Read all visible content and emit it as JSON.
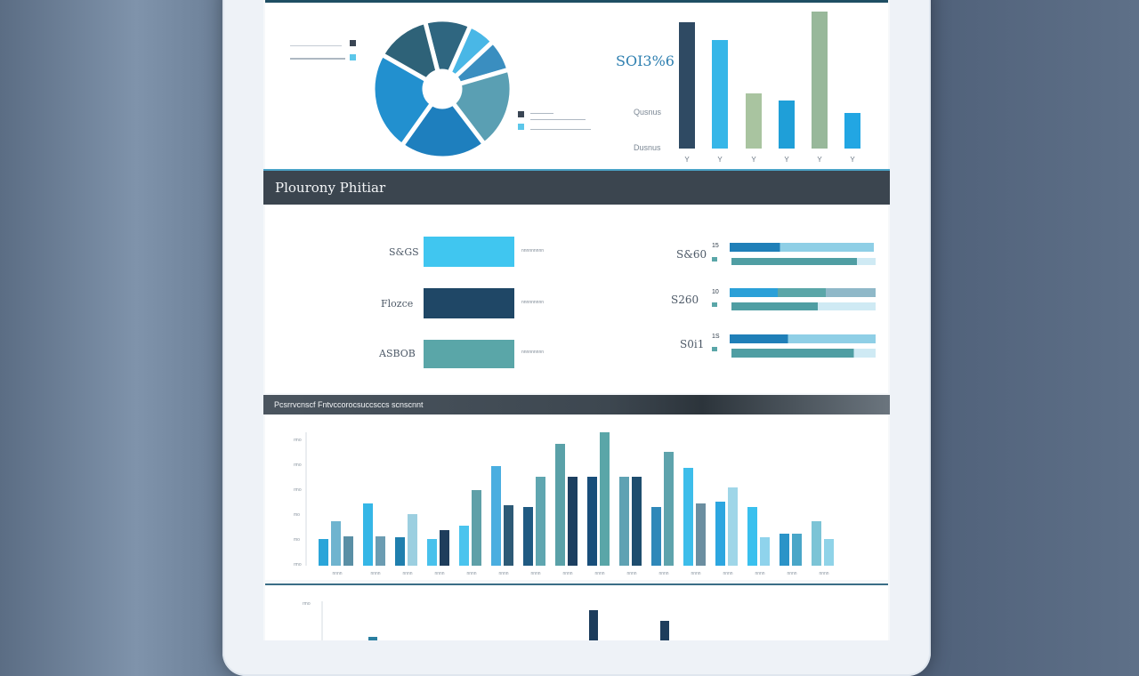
{
  "top_panel": {
    "big_value": "SOI3%6",
    "pie_slices": [
      {
        "value": 10,
        "color": "#2f6680"
      },
      {
        "value": 6,
        "color": "#49b7e6"
      },
      {
        "value": 7,
        "color": "#3a8ec0"
      },
      {
        "value": 18,
        "color": "#5a9fb3"
      },
      {
        "value": 19,
        "color": "#1e7fbe"
      },
      {
        "value": 22,
        "color": "#2290cf"
      },
      {
        "value": 12,
        "color": "#2e6278"
      }
    ],
    "bar_labels": [
      "Qusnus",
      "Dusnus"
    ],
    "vbars": [
      {
        "value": 142,
        "color": "#2f4a63"
      },
      {
        "value": 122,
        "color": "#36b6e8"
      },
      {
        "value": 62,
        "color": "#a9c4a0"
      },
      {
        "value": 54,
        "color": "#1f9fd8"
      },
      {
        "value": 154,
        "color": "#98b89a"
      },
      {
        "value": 40,
        "color": "#22a6e3"
      }
    ],
    "xticks": [
      "Y",
      "Y",
      "Y",
      "Y",
      "Y",
      "Y"
    ]
  },
  "section1": {
    "title": "Plourony Phitiar",
    "left_rows": [
      {
        "label": "S&GS",
        "color": "#40c6f0",
        "note": "nnnnnnnnn"
      },
      {
        "label": "Flozce",
        "color": "#1f4766",
        "note": "nnnnnnnnn"
      },
      {
        "label": "ASBOB",
        "color": "#5aa6a8",
        "note": "nnnnnnnnn"
      }
    ],
    "right_rows": [
      {
        "label": "S&60",
        "tag": "15",
        "dark": 0.35,
        "light": 0.65,
        "under": 0.87
      },
      {
        "label": "S260",
        "tag": "10",
        "dark": 0.35,
        "light": 0.65,
        "under": 0.6
      },
      {
        "label": "S0i1",
        "tag": "1S",
        "dark": 0.4,
        "light": 0.6,
        "under": 0.85
      }
    ]
  },
  "section2": {
    "title": "Pcsrrvcnscf Fntvccorocsuccsccs scnscnnt",
    "yticks": [
      "rmo",
      "rmo",
      "rmo",
      "mo",
      "mo",
      "rmo"
    ],
    "groups": [
      {
        "bars": [
          {
            "value": 30,
            "color": "#2aa5d9"
          },
          {
            "value": 50,
            "color": "#6fb4cf"
          },
          {
            "value": 33,
            "color": "#5a8fa5"
          }
        ],
        "label": "nnnn"
      },
      {
        "bars": [
          {
            "value": 70,
            "color": "#35b6e6"
          },
          {
            "value": 33,
            "color": "#6b9cb2"
          }
        ],
        "label": "nnnn"
      },
      {
        "bars": [
          {
            "value": 32,
            "color": "#1f7fae"
          },
          {
            "value": 58,
            "color": "#9ccfe0"
          }
        ],
        "label": "nnnn"
      },
      {
        "bars": [
          {
            "value": 30,
            "color": "#48c1ec"
          },
          {
            "value": 40,
            "color": "#1e3d5c"
          }
        ],
        "label": "nnnn"
      },
      {
        "bars": [
          {
            "value": 45,
            "color": "#4ac4ee"
          },
          {
            "value": 85,
            "color": "#5fa0a8"
          }
        ],
        "label": "nnnn"
      },
      {
        "bars": [
          {
            "value": 112,
            "color": "#4aaee0"
          },
          {
            "value": 68,
            "color": "#2d5a76"
          }
        ],
        "label": "nnnn"
      },
      {
        "bars": [
          {
            "value": 66,
            "color": "#1f5a82"
          },
          {
            "value": 100,
            "color": "#5fa6b0"
          }
        ],
        "label": "nnnn"
      },
      {
        "bars": [
          {
            "value": 137,
            "color": "#5aa1a8"
          },
          {
            "value": 100,
            "color": "#1c3f60"
          }
        ],
        "label": "nnnn"
      },
      {
        "bars": [
          {
            "value": 100,
            "color": "#184e7a"
          },
          {
            "value": 150,
            "color": "#5aa6a8"
          }
        ],
        "label": "nnnn"
      },
      {
        "bars": [
          {
            "value": 100,
            "color": "#5fa2b3"
          },
          {
            "value": 100,
            "color": "#1e4d6e"
          }
        ],
        "label": "nnnn"
      },
      {
        "bars": [
          {
            "value": 66,
            "color": "#2f88b9"
          },
          {
            "value": 128,
            "color": "#5ea3ac"
          }
        ],
        "label": "nnnn"
      },
      {
        "bars": [
          {
            "value": 110,
            "color": "#3dbdea"
          },
          {
            "value": 70,
            "color": "#6b8ea0"
          }
        ],
        "label": "nnnn"
      },
      {
        "bars": [
          {
            "value": 72,
            "color": "#2ca6e0"
          },
          {
            "value": 88,
            "color": "#9fd6e8"
          }
        ],
        "label": "nnnn"
      },
      {
        "bars": [
          {
            "value": 66,
            "color": "#39c0ee"
          },
          {
            "value": 32,
            "color": "#8fd3ec"
          }
        ],
        "label": "nnnn"
      },
      {
        "bars": [
          {
            "value": 36,
            "color": "#2b94c8"
          },
          {
            "value": 36,
            "color": "#49a6c8"
          }
        ],
        "label": "nnnn"
      },
      {
        "bars": [
          {
            "value": 50,
            "color": "#7cc4d6"
          },
          {
            "value": 30,
            "color": "#8fd3e8"
          }
        ],
        "label": "nnnn"
      }
    ]
  },
  "section3": {
    "ytick": "rmo",
    "bars": [
      {
        "value": 6,
        "color": "#2a7fa0"
      },
      {
        "value": 36,
        "color": "#1d3d5c"
      },
      {
        "value": 24,
        "color": "#1d3d5c"
      }
    ]
  }
}
